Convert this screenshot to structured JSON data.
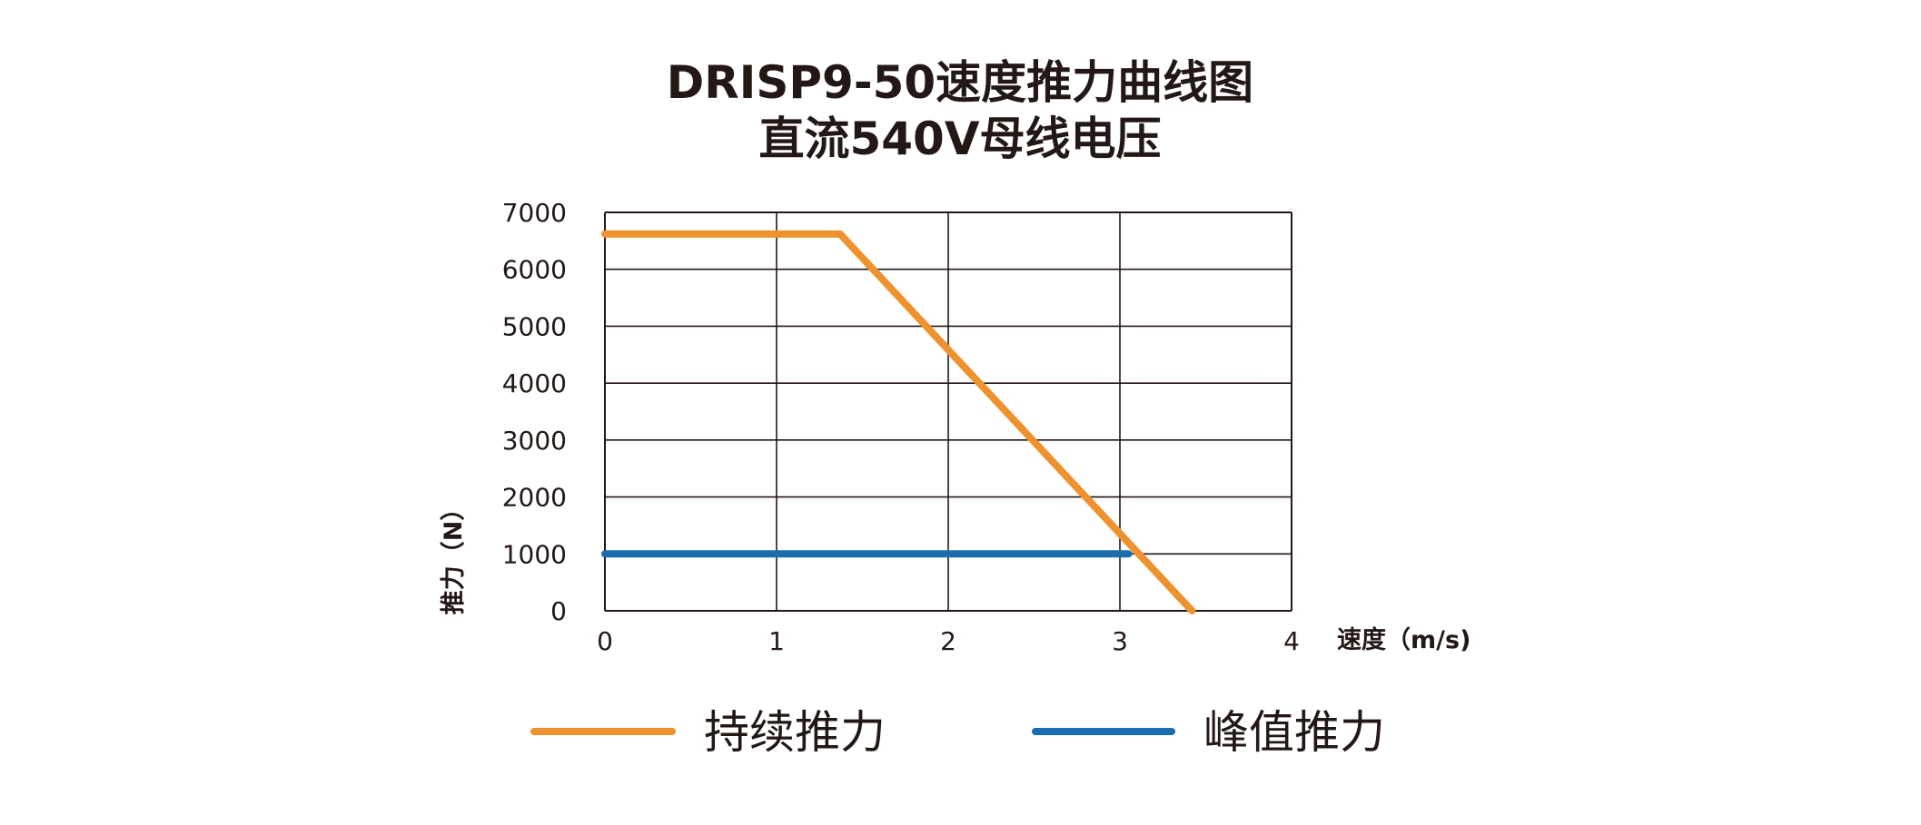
{
  "chart_data": {
    "type": "line",
    "title": "DRISP9-50速度推力曲线图",
    "subtitle": "直流540V母线电压",
    "xlabel": "速度（m/s)",
    "ylabel": "推力（N）",
    "xlim": [
      0,
      4
    ],
    "ylim": [
      0,
      7000
    ],
    "x_ticks": [
      0,
      1,
      2,
      3,
      4
    ],
    "y_ticks": [
      0,
      1000,
      2000,
      3000,
      4000,
      5000,
      6000,
      7000
    ],
    "grid": true,
    "legend_position": "bottom",
    "series": [
      {
        "name": "持续推力",
        "color": "#EE922F",
        "points": [
          [
            0,
            6620
          ],
          [
            1.37,
            6620
          ],
          [
            3.42,
            0
          ]
        ]
      },
      {
        "name": "峰值推力",
        "color": "#1A6DAF",
        "points": [
          [
            0,
            1000
          ],
          [
            3.05,
            1000
          ]
        ]
      }
    ]
  }
}
